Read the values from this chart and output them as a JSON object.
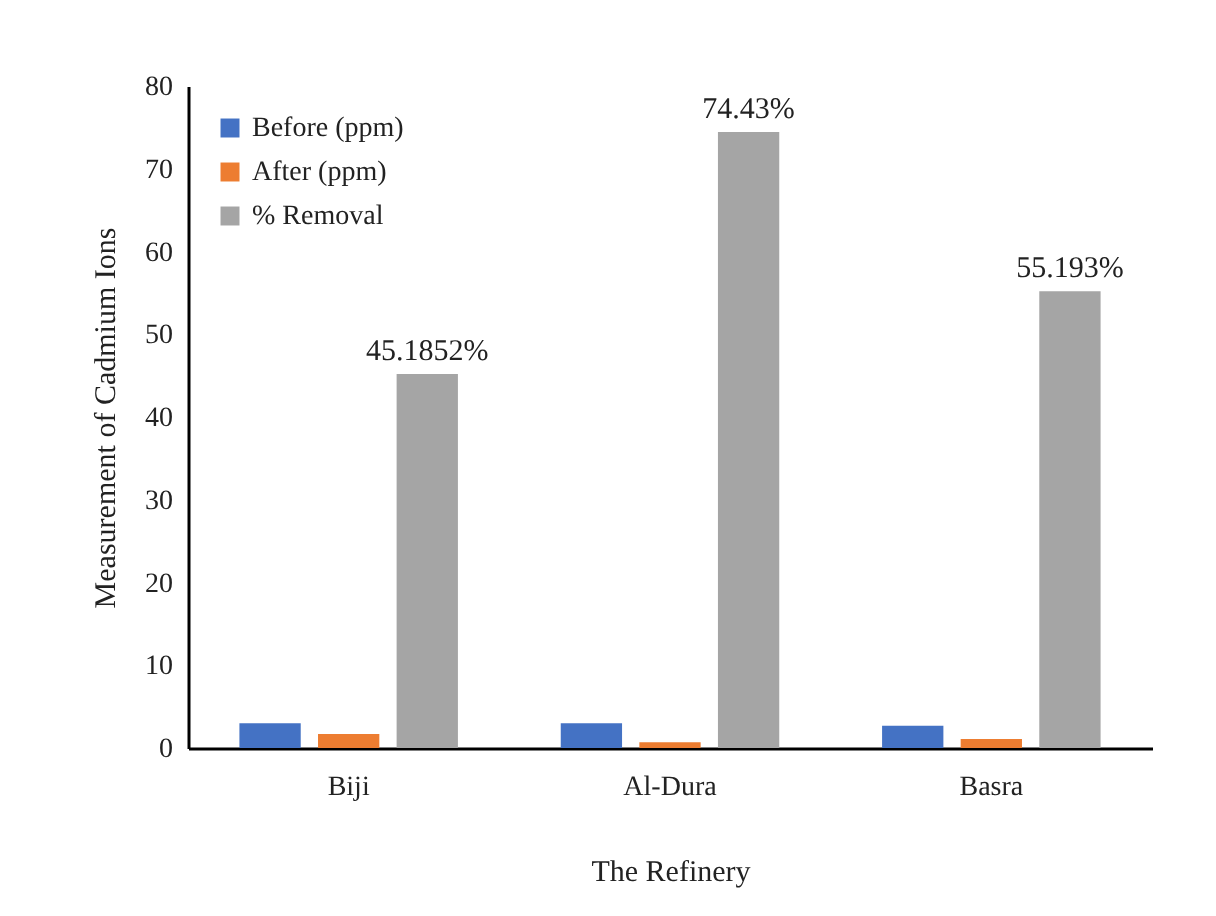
{
  "chart_data": {
    "type": "bar",
    "xlabel": "The Refinery",
    "ylabel": "Measurement of Cadmium Ions",
    "categories": [
      "Biji",
      "Al-Dura",
      "Basra"
    ],
    "series": [
      {
        "name": "Before (ppm)",
        "color": "#4472c4",
        "values": [
          3.0,
          3.0,
          2.7
        ]
      },
      {
        "name": "After (ppm)",
        "color": "#ed7d31",
        "values": [
          1.7,
          0.7,
          1.1
        ]
      },
      {
        "name": "% Removal",
        "color": "#a5a5a5",
        "values": [
          45.1852,
          74.43,
          55.193
        ],
        "value_labels": [
          "45.1852%",
          "74.43%",
          "55.193%"
        ]
      }
    ],
    "ylim": [
      0,
      80
    ],
    "yticks": [
      0,
      10,
      20,
      30,
      40,
      50,
      60,
      70,
      80
    ],
    "grid": false,
    "legend": "top left"
  }
}
